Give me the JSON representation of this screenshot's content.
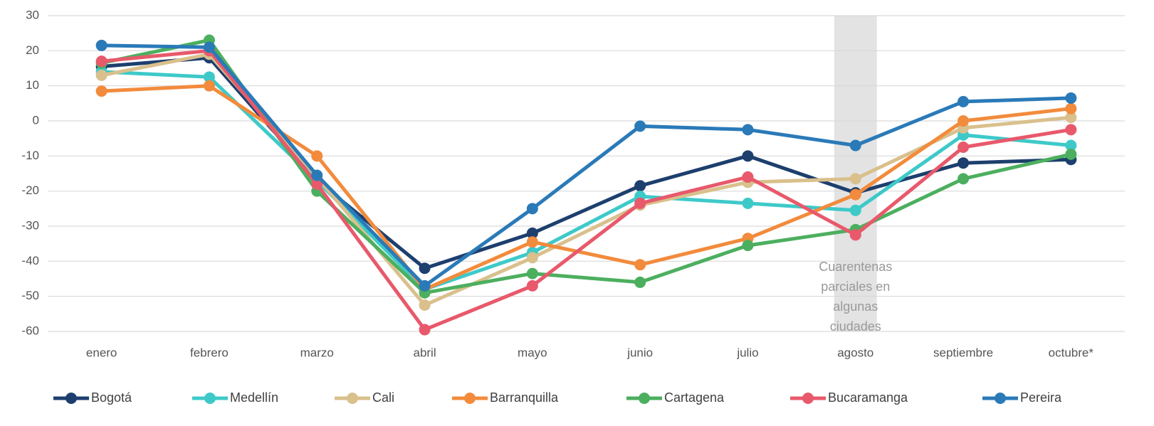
{
  "chart_data": {
    "type": "line",
    "categories": [
      "enero",
      "febrero",
      "marzo",
      "abril",
      "mayo",
      "junio",
      "julio",
      "agosto",
      "septiembre",
      "octubre*"
    ],
    "series": [
      {
        "name": "Bogotá",
        "color": "#1d3f6e",
        "values": [
          15.5,
          18,
          -17,
          -42,
          -32,
          -18.5,
          -10,
          -20.5,
          -12,
          -11
        ]
      },
      {
        "name": "Medellín",
        "color": "#3ec9c9",
        "values": [
          14,
          12.5,
          -17,
          -48,
          -37.5,
          -21.5,
          -23.5,
          -25.5,
          -4,
          -7
        ]
      },
      {
        "name": "Cali",
        "color": "#d9c08c",
        "values": [
          13,
          19,
          -16,
          -52.5,
          -39,
          -24,
          -17.5,
          -16.5,
          -2,
          1
        ]
      },
      {
        "name": "Barranquilla",
        "color": "#f28b3c",
        "values": [
          8.5,
          10,
          -10,
          -48,
          -34.5,
          -41,
          -33.5,
          -21,
          0,
          3.5
        ]
      },
      {
        "name": "Cartagena",
        "color": "#4caf5f",
        "values": [
          16.5,
          23,
          -20,
          -49,
          -43.5,
          -46,
          -35.5,
          -31,
          -16.5,
          -9.5
        ]
      },
      {
        "name": "Bucaramanga",
        "color": "#e8596b",
        "values": [
          17,
          20,
          -18,
          -59.5,
          -47,
          -23.5,
          -16,
          -32.5,
          -7.5,
          -2.5
        ]
      },
      {
        "name": "Pereira",
        "color": "#2a7ab8",
        "values": [
          21.5,
          21,
          -15.5,
          -47,
          -25,
          -1.5,
          -2.5,
          -7,
          5.5,
          6.5
        ]
      }
    ],
    "ylim": [
      -60,
      30
    ],
    "yticks": [
      -60,
      -50,
      -40,
      -30,
      -20,
      -10,
      0,
      10,
      20,
      30
    ],
    "grid": true,
    "highlight_category": "agosto",
    "annotation": [
      "Cuarentenas",
      "parciales en",
      "algunas",
      "ciudades"
    ],
    "legend": "bottom"
  }
}
